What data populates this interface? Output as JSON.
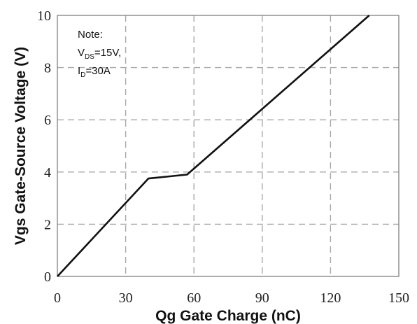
{
  "chart_data": {
    "type": "line",
    "xlabel": "Qg Gate Charge (nC)",
    "ylabel": "Vgs Gate-Source Voltage (V)",
    "xlim": [
      0,
      150
    ],
    "ylim": [
      0,
      10
    ],
    "xticks": [
      "0",
      "30",
      "60",
      "90",
      "120",
      "150"
    ],
    "yticks": [
      "0",
      "2",
      "4",
      "6",
      "8",
      "10"
    ],
    "grid": true,
    "series": [
      {
        "x": [
          0,
          40,
          57,
          137
        ],
        "y": [
          0,
          3.75,
          3.9,
          10
        ],
        "color": "#111111"
      }
    ],
    "annotation": {
      "line1": "Note:",
      "line2_main": "V",
      "line2_sub": "DS",
      "line2_rest": "=15V,",
      "line3_main": "I",
      "line3_sub": "D",
      "line3_rest": "=30A"
    }
  }
}
